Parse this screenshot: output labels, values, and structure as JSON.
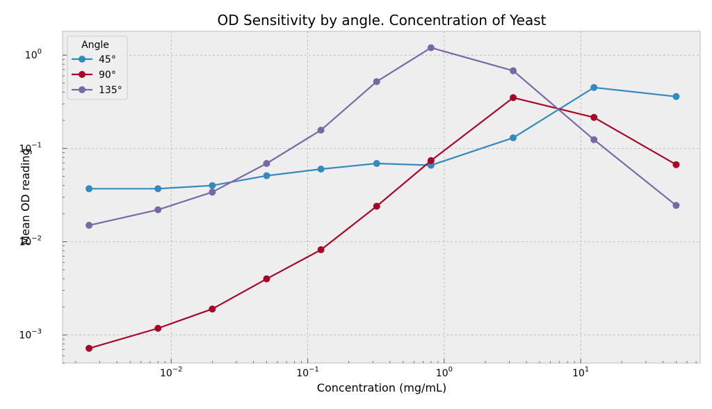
{
  "chart_data": {
    "type": "line",
    "title": "OD Sensitivity by angle. Concentration of Yeast",
    "xlabel": "Concentration (mg/mL)",
    "ylabel": "Mean OD reading",
    "xscale": "log",
    "yscale": "log",
    "xlim": [
      0.0016,
      75
    ],
    "ylim": [
      0.0005,
      1.8
    ],
    "grid": true,
    "legend": {
      "title": "Angle",
      "placement": "top-left"
    },
    "x": [
      0.0025,
      0.008,
      0.02,
      0.05,
      0.125,
      0.32,
      0.8,
      3.2,
      12.5,
      50
    ],
    "series": [
      {
        "name": "45°",
        "color": "#348abd",
        "values": [
          0.037,
          0.037,
          0.04,
          0.051,
          0.06,
          0.069,
          0.066,
          0.13,
          0.45,
          0.36
        ]
      },
      {
        "name": "90°",
        "color": "#a60628",
        "values": [
          0.00072,
          0.00118,
          0.0019,
          0.004,
          0.0082,
          0.024,
          0.074,
          0.35,
          0.215,
          0.067
        ]
      },
      {
        "name": "135°",
        "color": "#7a68a6",
        "values": [
          0.015,
          0.022,
          0.034,
          0.069,
          0.157,
          0.52,
          1.2,
          0.68,
          0.124,
          0.0245
        ]
      }
    ],
    "x_ticks": [
      {
        "base": "10",
        "exp": "−2",
        "value": 0.01
      },
      {
        "base": "10",
        "exp": "−1",
        "value": 0.1
      },
      {
        "base": "10",
        "exp": "0",
        "value": 1
      },
      {
        "base": "10",
        "exp": "1",
        "value": 10
      }
    ],
    "y_ticks": [
      {
        "base": "10",
        "exp": "−3",
        "value": 0.001
      },
      {
        "base": "10",
        "exp": "−2",
        "value": 0.01
      },
      {
        "base": "10",
        "exp": "−1",
        "value": 0.1
      },
      {
        "base": "10",
        "exp": "0",
        "value": 1
      }
    ],
    "colors": {
      "plot_background": "#eeeeee",
      "frame": "#bcbcbc"
    }
  }
}
